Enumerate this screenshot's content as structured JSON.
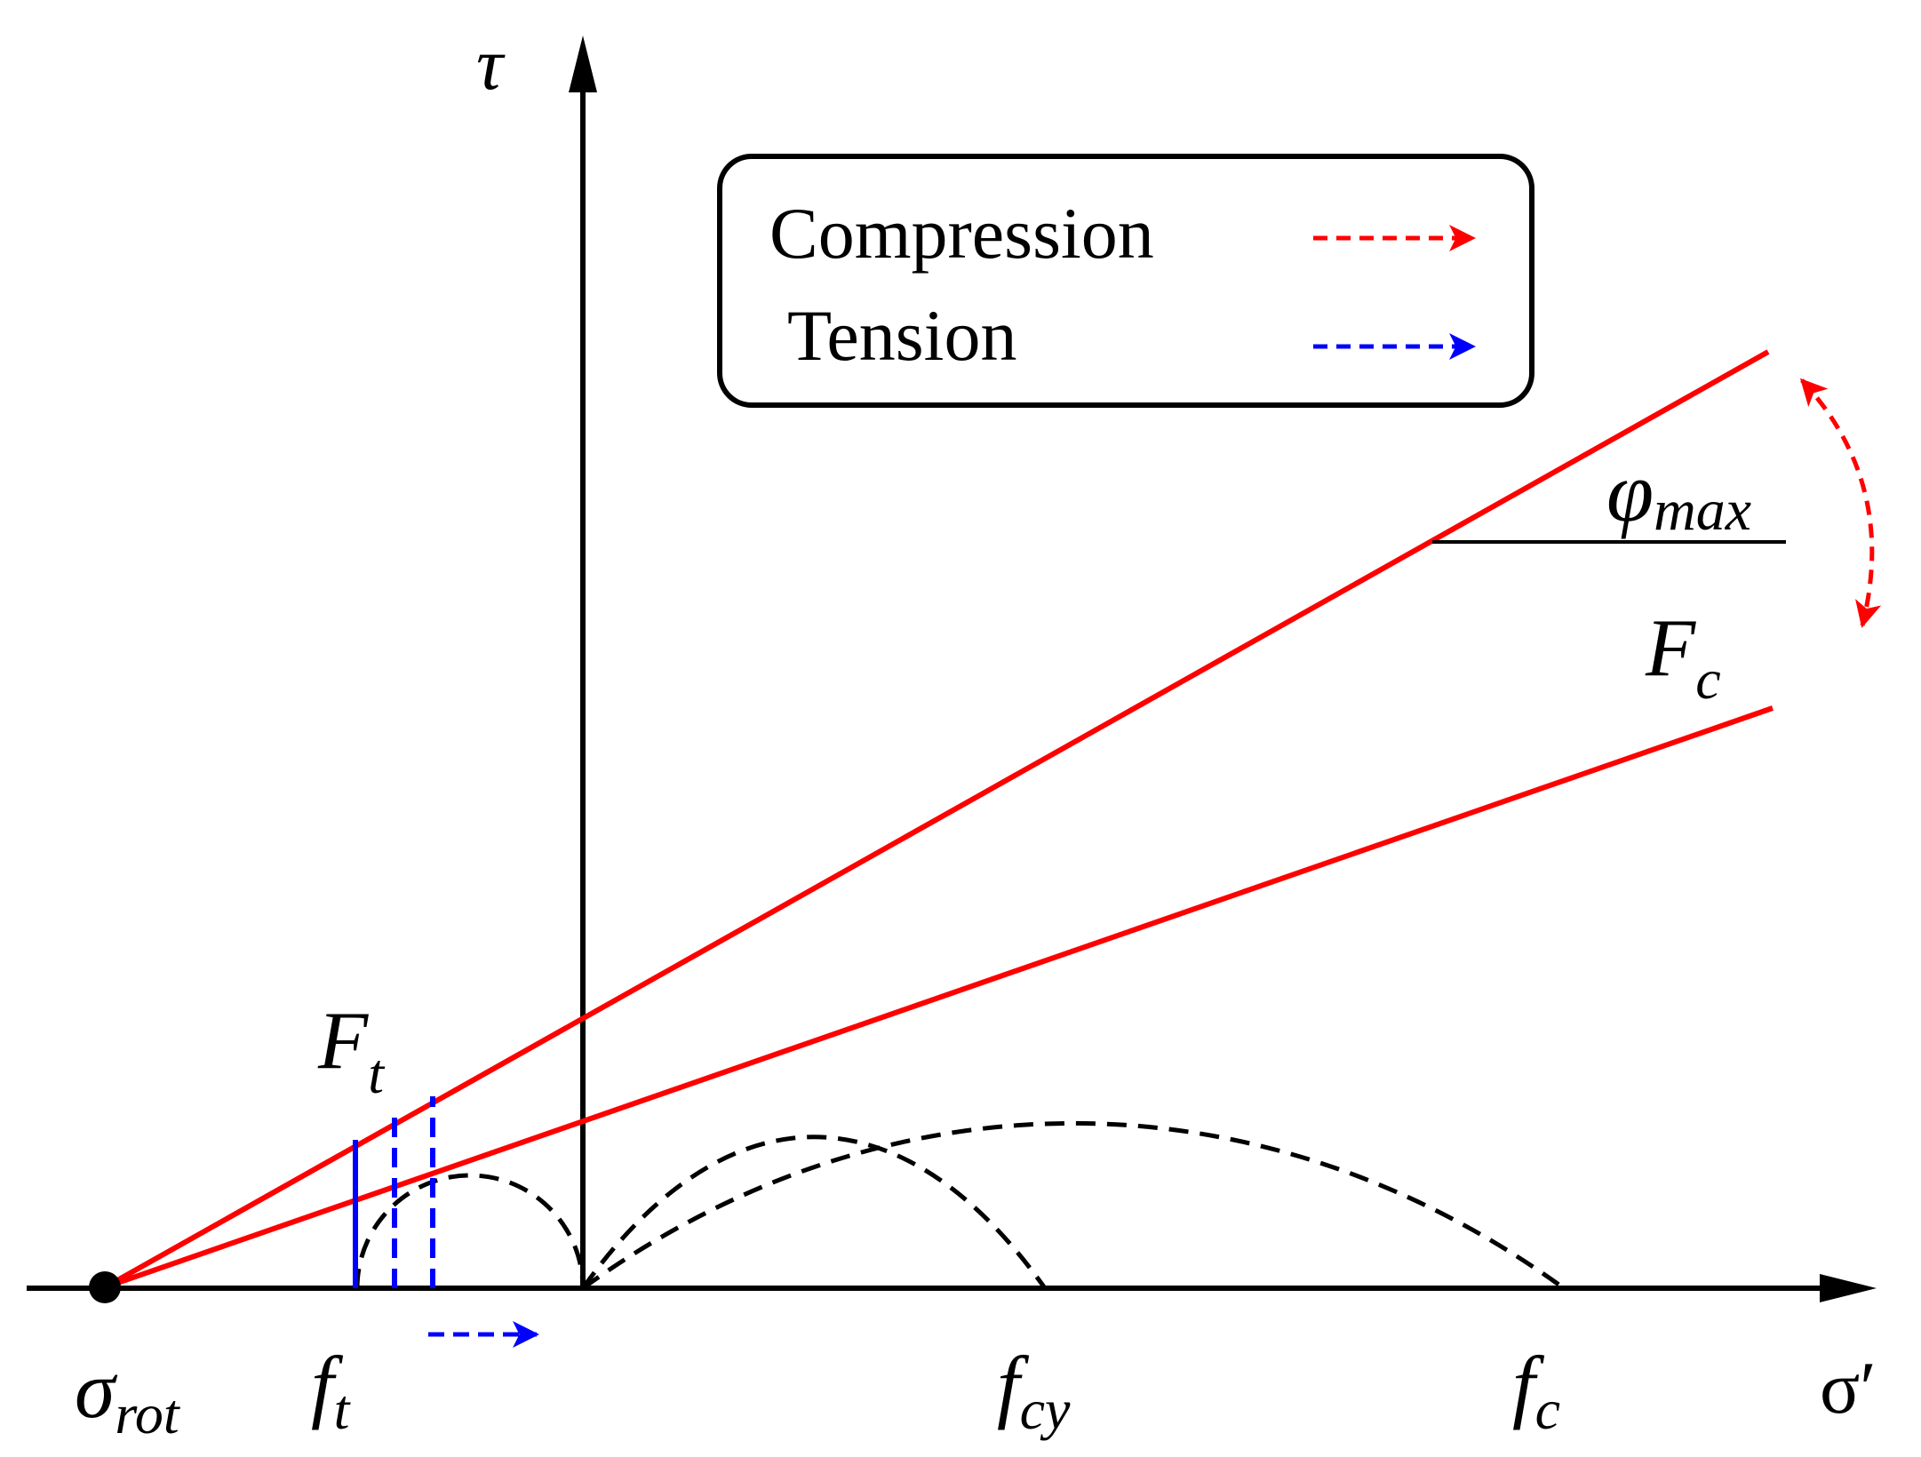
{
  "axes": {
    "y_label": "τ",
    "x_label": "σ′"
  },
  "legend": {
    "items": [
      {
        "label": "Compression",
        "color": "#ff0000",
        "style": "dashed-arrow"
      },
      {
        "label": "Tension",
        "color": "#0000ff",
        "style": "dashed-arrow"
      }
    ]
  },
  "labels": {
    "sigma_rot_main": "σ",
    "sigma_rot_sub": "rot",
    "ft_main": "f",
    "ft_sub": "t",
    "fcy_main": "f",
    "fcy_sub": "cy",
    "fc_main": "f",
    "fc_sub": "c",
    "Ft_main": "F",
    "Ft_sub": "t",
    "Fc_main": "F",
    "Fc_sub": "c",
    "phi_main": "φ",
    "phi_sub": "max"
  },
  "colors": {
    "envelope": "#ff0000",
    "tension_cutoff": "#0000ff",
    "circles": "#000000",
    "axis": "#000000"
  },
  "icons": {
    "origin_point": "filled-circle",
    "rotation": "curved-double-arrow",
    "tension_shift": "dashed-right-arrow"
  }
}
